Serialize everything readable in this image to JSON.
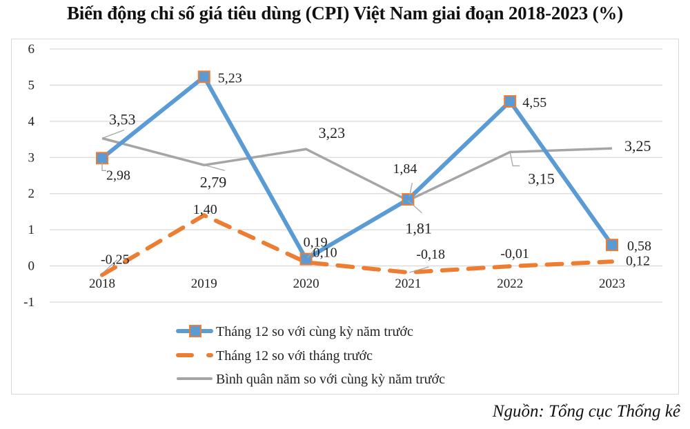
{
  "title": "Biến động chỉ số giá tiêu dùng (CPI) Việt Nam giai đoạn 2018-2023 (%)",
  "source": "Nguồn: Tổng cục Thống kê",
  "chart_data": {
    "type": "line",
    "title": "Biến động chỉ số giá tiêu dùng (CPI) Việt Nam giai đoạn 2018-2023 (%)",
    "xlabel": "",
    "ylabel": "",
    "categories": [
      "2018",
      "2019",
      "2020",
      "2021",
      "2022",
      "2023"
    ],
    "ylim": [
      -1,
      6
    ],
    "yticks": [
      "6",
      "5",
      "4",
      "3",
      "2",
      "1",
      "0",
      "-1"
    ],
    "ytick_values": [
      6,
      5,
      4,
      3,
      2,
      1,
      0,
      -1
    ],
    "grid": true,
    "legend_position": "bottom",
    "series": [
      {
        "name": "Tháng 12 so với cùng kỳ năm trước",
        "values": [
          2.98,
          5.23,
          0.19,
          1.84,
          4.55,
          0.58
        ],
        "labels": [
          "2,98",
          "5,23",
          "0,19",
          "1,84",
          "4,55",
          "0,58"
        ],
        "color": "#5B9BD5",
        "marker": "square",
        "marker_edge": "#ED7D31",
        "style": "solid"
      },
      {
        "name": "Tháng 12 so với tháng trước",
        "values": [
          -0.25,
          1.4,
          0.1,
          -0.18,
          -0.01,
          0.12
        ],
        "labels": [
          "-0,25",
          "1,40",
          "0,10",
          "-0,18",
          "-0,01",
          "0,12"
        ],
        "color": "#ED7D31",
        "marker": "none",
        "style": "dashed"
      },
      {
        "name": "Bình quân năm so với cùng kỳ năm trước",
        "values": [
          3.53,
          2.79,
          3.23,
          1.81,
          3.15,
          3.25
        ],
        "labels": [
          "3,53",
          "2,79",
          "3,23",
          "1,81",
          "3,15",
          "3,25"
        ],
        "color": "#A5A5A5",
        "marker": "none",
        "style": "solid"
      }
    ]
  }
}
